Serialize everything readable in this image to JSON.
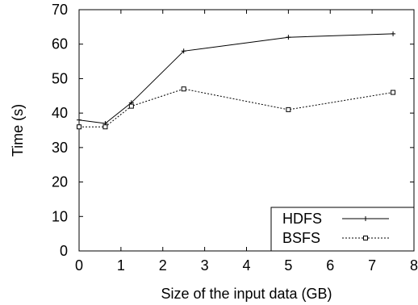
{
  "chart_data": {
    "type": "line",
    "title": "",
    "xlabel": "Size of the input data (GB)",
    "ylabel": "Time (s)",
    "xlim": [
      0,
      8
    ],
    "ylim": [
      0,
      70
    ],
    "xticks": [
      0,
      1,
      2,
      3,
      4,
      5,
      6,
      7,
      8
    ],
    "yticks": [
      0,
      10,
      20,
      30,
      40,
      50,
      60,
      70
    ],
    "grid": false,
    "legend_position": "bottom-right",
    "series": [
      {
        "name": "HDFS",
        "marker": "plus",
        "line_style": "solid",
        "color": "#000000",
        "x": [
          0,
          0.625,
          1.25,
          2.5,
          5,
          7.5
        ],
        "y": [
          38,
          37,
          43,
          58,
          62,
          63
        ]
      },
      {
        "name": "BSFS",
        "marker": "square",
        "line_style": "dashed",
        "color": "#000000",
        "x": [
          0,
          0.625,
          1.25,
          2.5,
          5,
          7.5
        ],
        "y": [
          36,
          36,
          42,
          47,
          41,
          46
        ]
      }
    ]
  }
}
